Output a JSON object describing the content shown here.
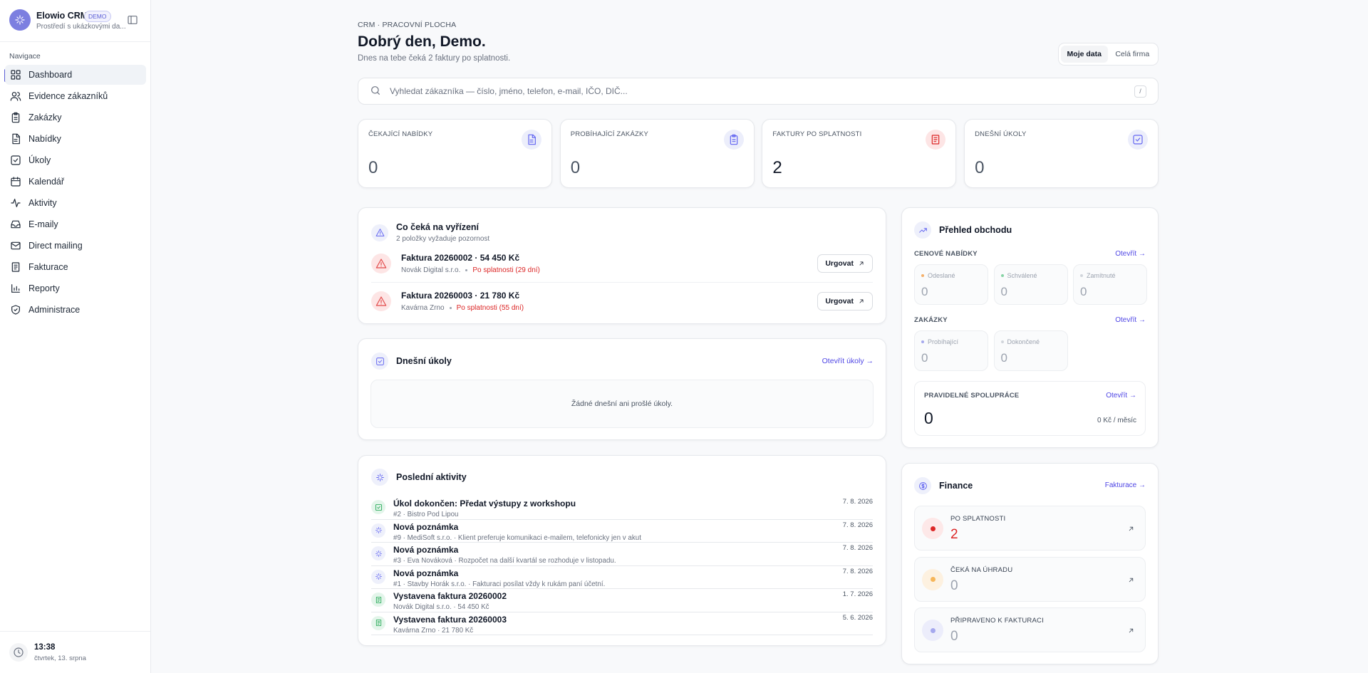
{
  "sidebar": {
    "app_name": "Elowio CRM",
    "badge": "DEMO",
    "subtitle": "Prostředí s ukázkovými da...",
    "nav_heading": "Navigace",
    "nav": [
      "Dashboard",
      "Evidence zákazníků",
      "Zakázky",
      "Nabídky",
      "Úkoly",
      "Kalendář",
      "Aktivity",
      "E-maily",
      "Direct mailing",
      "Fakturace",
      "Reporty",
      "Administrace"
    ],
    "clock": {
      "time": "13:38",
      "date": "čtvrtek, 13. srpna"
    }
  },
  "header": {
    "breadcrumb": "CRM · PRACOVNÍ PLOCHA",
    "title": "Dobrý den, Demo.",
    "subtitle": "Dnes na tebe čeká 2 faktury po splatnosti.",
    "toggle": [
      "Moje data",
      "Celá firma"
    ]
  },
  "search": {
    "placeholder": "Vyhledat zákazníka — číslo, jméno, telefon, e-mail, IČO, DIČ...",
    "shortcut": "/"
  },
  "kpis": [
    {
      "label": "ČEKAJÍCÍ NABÍDKY",
      "value": 0
    },
    {
      "label": "PROBÍHAJÍCÍ ZAKÁZKY",
      "value": 0
    },
    {
      "label": "FAKTURY PO SPLATNOSTI",
      "value": 2
    },
    {
      "label": "DNEŠNÍ ÚKOLY",
      "value": 0
    }
  ],
  "pending": {
    "title": "Co čeká na vyřízení",
    "subtitle": "2 položky vyžaduje pozornost",
    "items": [
      {
        "title": "Faktura 20260002 · 54 450 Kč",
        "customer": "Novák Digital s.r.o.",
        "status": "Po splatnosti (29 dní)",
        "action": "Urgovat"
      },
      {
        "title": "Faktura 20260003 · 21 780 Kč",
        "customer": "Kavárna Zrno",
        "status": "Po splatnosti (55 dní)",
        "action": "Urgovat"
      }
    ]
  },
  "tasks": {
    "title": "Dnešní úkoly",
    "link": "Otevřít úkoly →",
    "empty": "Žádné dnešní ani prošlé úkoly."
  },
  "activities": {
    "title": "Poslední aktivity",
    "items": [
      {
        "title": "Úkol dokončen: Předat výstupy z workshopu",
        "detail": "#2 · Bistro Pod Lipou",
        "date": "7. 8. 2026"
      },
      {
        "title": "Nová poznámka",
        "detail": "#9 · MediSoft s.r.o. · Klient preferuje komunikaci e-mailem, telefonicky jen v akut",
        "date": "7. 8. 2026"
      },
      {
        "title": "Nová poznámka",
        "detail": "#3 · Eva Nováková · Rozpočet na další kvartál se rozhoduje v listopadu.",
        "date": "7. 8. 2026"
      },
      {
        "title": "Nová poznámka",
        "detail": "#1 · Stavby Horák s.r.o. · Fakturaci posílat vždy k rukám paní účetní.",
        "date": "7. 8. 2026"
      },
      {
        "title": "Vystavena faktura 20260002",
        "detail": "Novák Digital s.r.o. · 54 450 Kč",
        "date": "1. 7. 2026"
      },
      {
        "title": "Vystavena faktura 20260003",
        "detail": "Kavárna Zrno · 21 780 Kč",
        "date": "5. 6. 2026"
      }
    ]
  },
  "overview": {
    "title": "Přehled obchodu",
    "offers": {
      "heading": "CENOVÉ NABÍDKY",
      "link": "Otevřít →",
      "stats": [
        {
          "label": "Odeslané",
          "value": 0
        },
        {
          "label": "Schválené",
          "value": 0
        },
        {
          "label": "Zamítnuté",
          "value": 0
        }
      ]
    },
    "orders": {
      "heading": "ZAKÁZKY",
      "link": "Otevřít →",
      "stats": [
        {
          "label": "Probíhající",
          "value": 0
        },
        {
          "label": "Dokončené",
          "value": 0
        }
      ]
    },
    "recurring": {
      "heading": "PRAVIDELNÉ SPOLUPRÁCE",
      "link": "Otevřít →",
      "value": 0,
      "amount": "0 Kč / měsíc"
    }
  },
  "finance": {
    "title": "Finance",
    "link": "Fakturace →",
    "rows": [
      {
        "label": "PO SPLATNOSTI",
        "value": 2
      },
      {
        "label": "ČEKÁ NA ÚHRADU",
        "value": 0
      },
      {
        "label": "PŘIPRAVENO K FAKTURACI",
        "value": 0
      }
    ]
  }
}
